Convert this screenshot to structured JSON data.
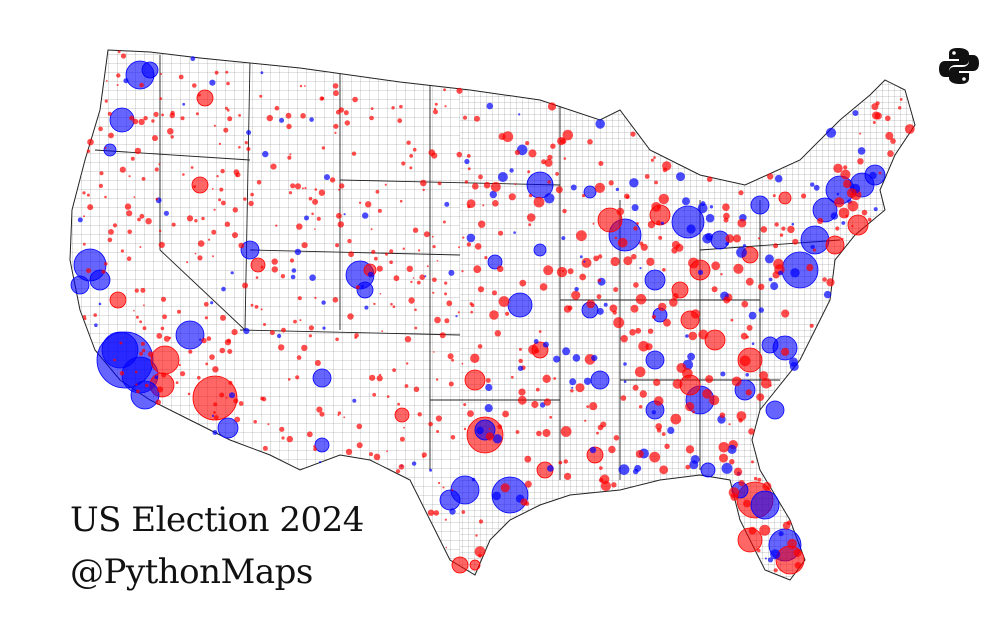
{
  "title": "US Election 2024",
  "handle": "@PythonMaps",
  "logo_icon": "python-logo-icon",
  "colors": {
    "republican": "#ff0000",
    "democrat": "#0000ff",
    "county_border": "#444444",
    "state_border": "#222222",
    "land": "#ffffff"
  },
  "legend": "none"
}
